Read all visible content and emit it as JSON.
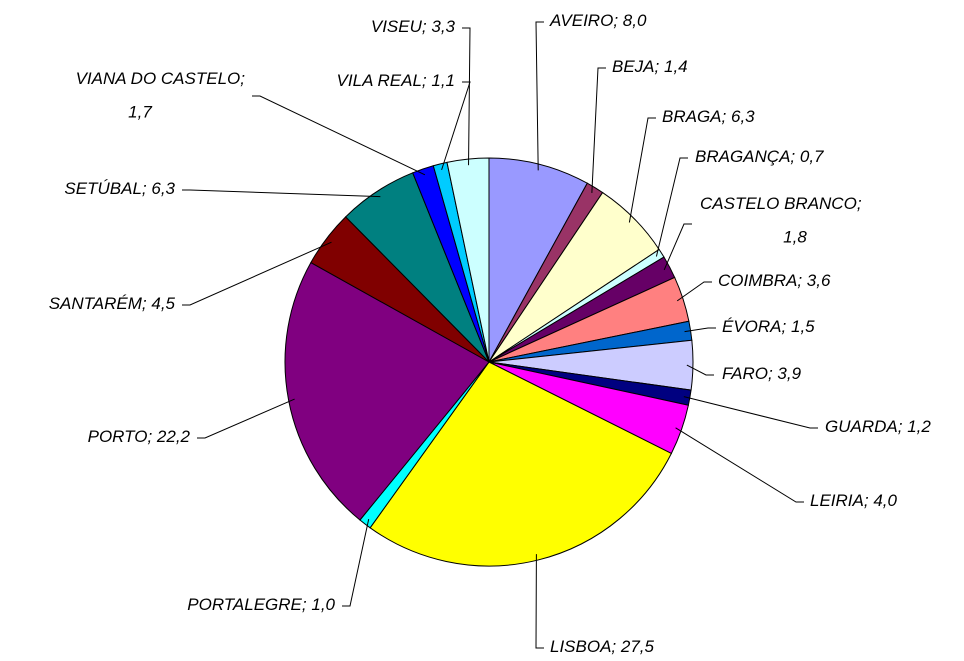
{
  "chart_data": {
    "type": "pie",
    "categories": [
      "AVEIRO",
      "BEJA",
      "BRAGA",
      "BRAGANÇA",
      "CASTELO BRANCO",
      "COIMBRA",
      "ÉVORA",
      "FARO",
      "GUARDA",
      "LEIRIA",
      "LISBOA",
      "PORTALEGRE",
      "PORTO",
      "SANTARÉM",
      "SETÚBAL",
      "VIANA DO CASTELO",
      "VILA REAL",
      "VISEU"
    ],
    "values": [
      8.0,
      1.4,
      6.3,
      0.7,
      1.8,
      3.6,
      1.5,
      3.9,
      1.2,
      4.0,
      27.5,
      1.0,
      22.2,
      4.5,
      6.3,
      1.7,
      1.1,
      3.3
    ],
    "value_labels": [
      "8,0",
      "1,4",
      "6,3",
      "0,7",
      "1,8",
      "3,6",
      "1,5",
      "3,9",
      "1,2",
      "4,0",
      "27,5",
      "1,0",
      "22,2",
      "4,5",
      "6,3",
      "1,7",
      "1,1",
      "3,3"
    ],
    "label_separator": "; ",
    "colors": [
      "#9999ff",
      "#993366",
      "#ffffcc",
      "#ccffff",
      "#660066",
      "#ff8080",
      "#0066cc",
      "#ccccff",
      "#000080",
      "#ff00ff",
      "#ffff00",
      "#00ffff",
      "#800080",
      "#800000",
      "#008080",
      "#0000ff",
      "#00ccff",
      "#ccffff"
    ]
  }
}
